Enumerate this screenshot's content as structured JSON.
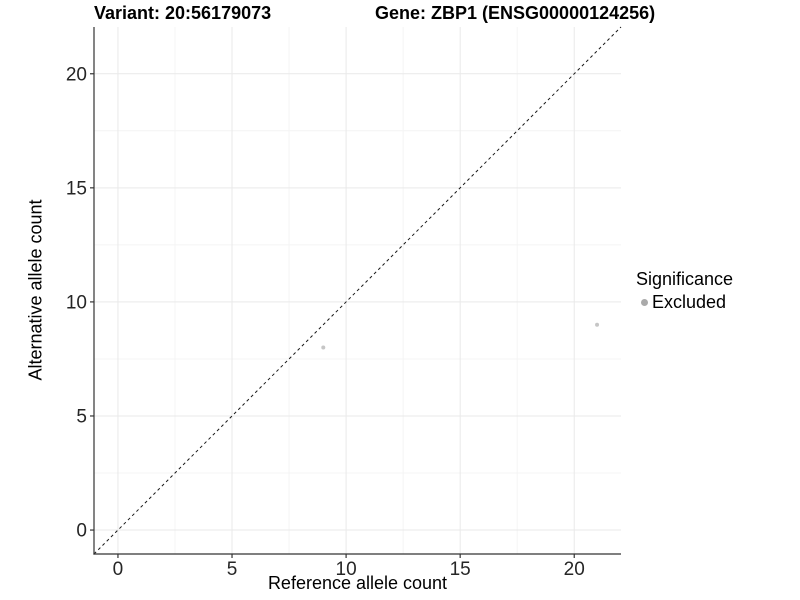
{
  "chart_data": {
    "type": "scatter",
    "title_left": "Variant: 20:56179073",
    "title_right": "Gene: ZBP1 (ENSG00000124256)",
    "xlabel": "Reference allele count",
    "ylabel": "Alternative allele count",
    "xlim": [
      -1.05,
      22.05
    ],
    "ylim": [
      -1.05,
      22.05
    ],
    "xticks": [
      0,
      5,
      10,
      15,
      20
    ],
    "yticks": [
      0,
      5,
      10,
      15,
      20
    ],
    "minor_xticks": [
      2.5,
      7.5,
      12.5,
      17.5
    ],
    "minor_yticks": [
      2.5,
      7.5,
      12.5,
      17.5
    ],
    "grid": true,
    "identity_line": {
      "style": "dashed",
      "from": -1.05,
      "to": 22.05,
      "color": "#1a1a1a"
    },
    "series": [
      {
        "name": "Excluded",
        "color": "#c6c6c6",
        "point_radius": 2,
        "points": [
          {
            "x": 9,
            "y": 8
          },
          {
            "x": 21,
            "y": 9
          }
        ]
      }
    ],
    "legend": {
      "title": "Significance",
      "position": "right",
      "entries": [
        {
          "label": "Excluded",
          "color": "#aaaaaa"
        }
      ]
    },
    "colors": {
      "background": "#ffffff",
      "axis_line": "#333333",
      "major_grid": "#e9e9e9",
      "minor_grid": "#f4f4f4",
      "tick_text": "#262626"
    }
  }
}
